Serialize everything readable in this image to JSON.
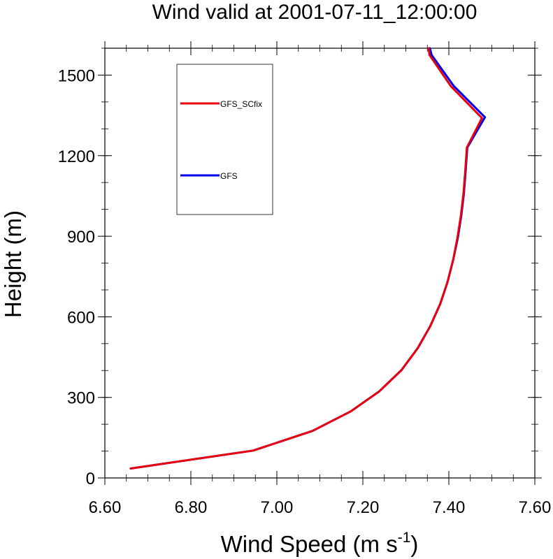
{
  "chart_data": {
    "type": "line",
    "title": "Wind valid at 2001-07-11_12:00:00",
    "xlabel_main": "Wind Speed (m s",
    "xlabel_sup": "-1",
    "xlabel_close": ")",
    "ylabel": "Height (m)",
    "xlim": [
      6.6,
      7.6
    ],
    "ylim": [
      0,
      1600
    ],
    "xticks": [
      6.6,
      6.8,
      7.0,
      7.2,
      7.4,
      7.6
    ],
    "xtick_labels": [
      "6.60",
      "6.80",
      "7.00",
      "7.20",
      "7.40",
      "7.60"
    ],
    "yticks": [
      0,
      300,
      600,
      900,
      1200,
      1500
    ],
    "ytick_labels": [
      "0",
      "300",
      "600",
      "900",
      "1200",
      "1500"
    ],
    "grid": false,
    "legend_placement": "upper-left",
    "series": [
      {
        "name": "GFS_SCfix",
        "color": "#e8000b",
        "points": [
          [
            6.66,
            35
          ],
          [
            6.945,
            102
          ],
          [
            7.083,
            175
          ],
          [
            7.172,
            248
          ],
          [
            7.238,
            322
          ],
          [
            7.29,
            402
          ],
          [
            7.328,
            484
          ],
          [
            7.357,
            566
          ],
          [
            7.38,
            648
          ],
          [
            7.397,
            730
          ],
          [
            7.41,
            812
          ],
          [
            7.42,
            894
          ],
          [
            7.428,
            976
          ],
          [
            7.434,
            1058
          ],
          [
            7.438,
            1140
          ],
          [
            7.442,
            1230
          ],
          [
            7.477,
            1340
          ],
          [
            7.405,
            1458
          ],
          [
            7.355,
            1575
          ],
          [
            7.353,
            1600
          ]
        ]
      },
      {
        "name": "GFS",
        "color": "#0000ee",
        "points": [
          [
            6.66,
            35
          ],
          [
            6.945,
            102
          ],
          [
            7.083,
            175
          ],
          [
            7.172,
            248
          ],
          [
            7.238,
            322
          ],
          [
            7.29,
            402
          ],
          [
            7.328,
            484
          ],
          [
            7.357,
            566
          ],
          [
            7.38,
            648
          ],
          [
            7.397,
            730
          ],
          [
            7.41,
            812
          ],
          [
            7.421,
            894
          ],
          [
            7.429,
            976
          ],
          [
            7.435,
            1058
          ],
          [
            7.439,
            1140
          ],
          [
            7.443,
            1230
          ],
          [
            7.484,
            1343
          ],
          [
            7.411,
            1460
          ],
          [
            7.36,
            1575
          ],
          [
            7.356,
            1600
          ]
        ]
      }
    ]
  }
}
